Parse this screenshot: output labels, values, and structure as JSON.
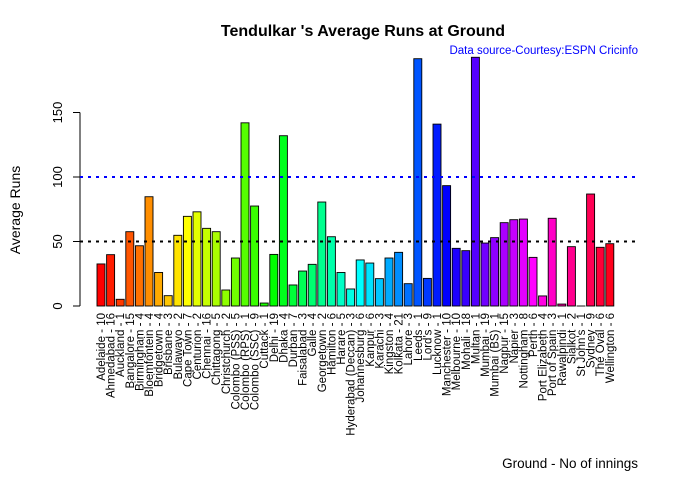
{
  "chart_data": {
    "type": "bar",
    "title": "Tendulkar 's Average Runs at Ground",
    "subtitle": "Data source-Courtesy:ESPN Cricinfo",
    "xlabel": "Ground - No of innings",
    "ylabel": "Average Runs",
    "ylim": [
      0,
      195
    ],
    "yticks": [
      0,
      50,
      100,
      150
    ],
    "reference_lines": [
      {
        "value": 50,
        "color": "#000000",
        "style": "dashed"
      },
      {
        "value": 100,
        "color": "#0000ff",
        "style": "dashed"
      }
    ],
    "colors": "rainbow",
    "categories": [
      "Adelaide - 10",
      "Ahmedabad - 16",
      "Auckland - 1",
      "Bangalore - 15",
      "Birmingham - 4",
      "Bloemfontein - 4",
      "Bridgetown - 4",
      "Brisbane - 3",
      "Bulawayo - 2",
      "Cape Town - 7",
      "Centurion - 2",
      "Chennai - 16",
      "Chittagong - 5",
      "Christchurch - 2",
      "Colombo (PSS) - 5",
      "Colombo (RPS) - 1",
      "Colombo (SSC) - 9",
      "Cuttack - 1",
      "Delhi - 19",
      "Dhaka - 4",
      "Durban - 7",
      "Faisalabad - 3",
      "Galle - 4",
      "Georgetown - 2",
      "Hamilton - 6",
      "Harare - 5",
      "Hyderabad (Deccan) - 3",
      "Johannesburg - 6",
      "Kanpur - 6",
      "Karachi - 3",
      "Kingston - 4",
      "Kolkata - 21",
      "Lahore - 3",
      "Leeds - 1",
      "Lord's - 9",
      "Lucknow - 1",
      "Manchester - 10",
      "Melbourne - 10",
      "Mohali - 18",
      "Multan - 1",
      "Mumbai - 19",
      "Mumbai (BS) - 1",
      "Nagpur - 15",
      "Napier - 3",
      "Nottingham - 8",
      "Perth - 6",
      "Port Elizabeth - 4",
      "Port of Spain - 3",
      "Rawalpindi - 1",
      "Sialkot - 2",
      "St John's - 1",
      "Sydney - 9",
      "The Oval - 6",
      "Wellington - 6"
    ],
    "values": [
      32.6,
      39.8,
      5.2,
      57.6,
      46.7,
      84.7,
      26,
      8,
      54.8,
      69.5,
      73,
      60.2,
      57.6,
      12.4,
      37.2,
      142,
      77.5,
      2.3,
      40,
      132,
      16.3,
      27.1,
      32.3,
      80.6,
      53.7,
      26,
      13.2,
      35.7,
      33.3,
      21.2,
      37.2,
      41.6,
      17.3,
      191.7,
      21.4,
      141,
      93.3,
      44.7,
      42.9,
      192.8,
      48.8,
      53,
      64.6,
      66.9,
      67.4,
      37.7,
      7.8,
      68,
      1.5,
      46,
      0,
      86.8,
      45.5,
      48.3
    ]
  }
}
